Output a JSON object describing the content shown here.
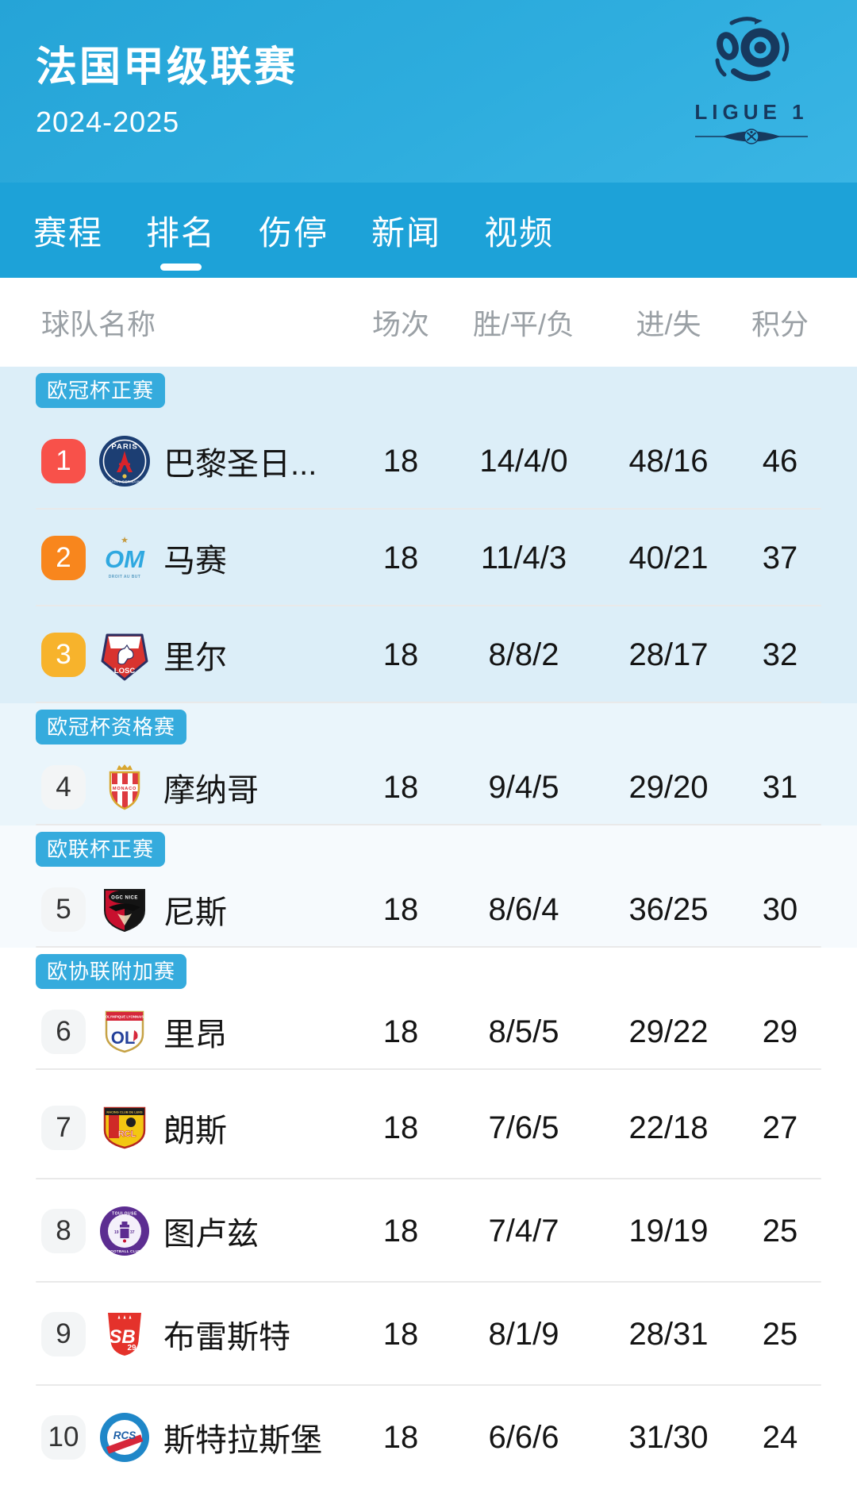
{
  "header": {
    "title": "法国甲级联赛",
    "season": "2024-2025",
    "logo_text": "LIGUE 1"
  },
  "tabs": [
    {
      "id": "schedule",
      "label": "赛程",
      "active": false
    },
    {
      "id": "standings",
      "label": "排名",
      "active": true
    },
    {
      "id": "injuries",
      "label": "伤停",
      "active": false
    },
    {
      "id": "news",
      "label": "新闻",
      "active": false
    },
    {
      "id": "videos",
      "label": "视频",
      "active": false
    }
  ],
  "colors": {
    "header_blue": "#2eadde",
    "tabbar_blue": "#1da2d8",
    "section_badge_bg": "#35abdd",
    "divider": "#e9e9e9",
    "logo_navy": "#17395e"
  },
  "table": {
    "columns": {
      "team": "球队名称",
      "played": "场次",
      "wdl": "胜/平/负",
      "goals": "进/失",
      "points": "积分"
    },
    "sections": [
      {
        "label": "欧冠杯正赛",
        "bg": "#dceef8",
        "teams": [
          {
            "rank": "1",
            "rank_bg": "#f8514a",
            "rank_fg": "#ffffff",
            "crest": "psg",
            "crest_label": "PARIS",
            "crest_sub": "SAINT-GERMAIN",
            "name": "巴黎圣日...",
            "played": "18",
            "wdl": "14/4/0",
            "goals": "48/16",
            "points": "46"
          },
          {
            "rank": "2",
            "rank_bg": "#f8861d",
            "rank_fg": "#ffffff",
            "crest": "marseille",
            "crest_label": "OM",
            "crest_sub": "DROIT AU BUT",
            "name": "马赛",
            "played": "18",
            "wdl": "11/4/3",
            "goals": "40/21",
            "points": "37"
          },
          {
            "rank": "3",
            "rank_bg": "#f7b32c",
            "rank_fg": "#ffffff",
            "crest": "lille",
            "crest_label": "LOSC",
            "crest_sub": "",
            "name": "里尔",
            "played": "18",
            "wdl": "8/8/2",
            "goals": "28/17",
            "points": "32"
          }
        ]
      },
      {
        "label": "欧冠杯资格赛",
        "bg": "#eaf5fb",
        "teams": [
          {
            "rank": "4",
            "rank_bg": "#f3f5f6",
            "rank_fg": "#333333",
            "crest": "monaco",
            "crest_label": "MONACO",
            "crest_sub": "",
            "name": "摩纳哥",
            "played": "18",
            "wdl": "9/4/5",
            "goals": "29/20",
            "points": "31"
          }
        ]
      },
      {
        "label": "欧联杯正赛",
        "bg": "#f6fafd",
        "teams": [
          {
            "rank": "5",
            "rank_bg": "#f3f5f6",
            "rank_fg": "#333333",
            "crest": "nice",
            "crest_label": "OGC NICE",
            "crest_sub": "",
            "name": "尼斯",
            "played": "18",
            "wdl": "8/6/4",
            "goals": "36/25",
            "points": "30"
          }
        ]
      },
      {
        "label": "欧协联附加赛",
        "bg": "#ffffff",
        "teams": [
          {
            "rank": "6",
            "rank_bg": "#f3f5f6",
            "rank_fg": "#333333",
            "crest": "lyon",
            "crest_label": "OL",
            "crest_sub": "OLYMPIQUE LYONNAIS",
            "name": "里昂",
            "played": "18",
            "wdl": "8/5/5",
            "goals": "29/22",
            "points": "29"
          }
        ]
      },
      {
        "label": null,
        "bg": "#ffffff",
        "teams": [
          {
            "rank": "7",
            "rank_bg": "#f3f5f6",
            "rank_fg": "#333333",
            "crest": "lens",
            "crest_label": "RCL",
            "crest_sub": "RACING CLUB DE LENS",
            "name": "朗斯",
            "played": "18",
            "wdl": "7/6/5",
            "goals": "22/18",
            "points": "27"
          },
          {
            "rank": "8",
            "rank_bg": "#f3f5f6",
            "rank_fg": "#333333",
            "crest": "toulouse",
            "crest_label": "TOULOUSE",
            "crest_sub": "FOOTBALL CLUB",
            "name": "图卢兹",
            "played": "18",
            "wdl": "7/4/7",
            "goals": "19/19",
            "points": "25"
          },
          {
            "rank": "9",
            "rank_bg": "#f3f5f6",
            "rank_fg": "#333333",
            "crest": "brest",
            "crest_label": "SB",
            "crest_sub": "29",
            "name": "布雷斯特",
            "played": "18",
            "wdl": "8/1/9",
            "goals": "28/31",
            "points": "25"
          },
          {
            "rank": "10",
            "rank_bg": "#f3f5f6",
            "rank_fg": "#333333",
            "crest": "strasbourg",
            "crest_label": "RCS",
            "crest_sub": "",
            "name": "斯特拉斯堡",
            "played": "18",
            "wdl": "6/6/6",
            "goals": "31/30",
            "points": "24"
          }
        ]
      }
    ]
  }
}
